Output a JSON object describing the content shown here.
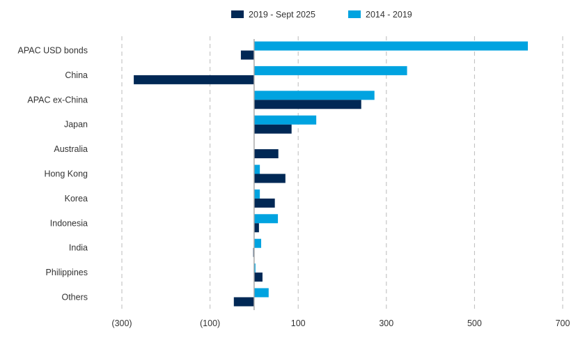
{
  "chart_data": {
    "type": "bar",
    "orientation": "horizontal",
    "categories": [
      "APAC USD bonds",
      "China",
      "APAC ex-China",
      "Japan",
      "Australia",
      "Hong Kong",
      "Korea",
      "Indonesia",
      "India",
      "Philippines",
      "Others"
    ],
    "series": [
      {
        "name": "2019 - Sept 2025",
        "color": "#002855",
        "values": [
          -30,
          -273,
          243,
          85,
          55,
          71,
          47,
          11,
          -2,
          19,
          -46
        ]
      },
      {
        "name": "2014 - 2019",
        "color": "#00a3e0",
        "values": [
          621,
          347,
          273,
          141,
          0,
          13,
          13,
          54,
          16,
          3,
          33
        ]
      }
    ],
    "xlim": [
      -300,
      700
    ],
    "xticks": [
      -300,
      -100,
      100,
      300,
      500,
      700
    ],
    "xtick_labels": [
      "(300)",
      "(100)",
      "100",
      "300",
      "500",
      "700"
    ],
    "grid": "vertical dashed",
    "legend": "top",
    "title": "",
    "xlabel": "",
    "ylabel": ""
  }
}
